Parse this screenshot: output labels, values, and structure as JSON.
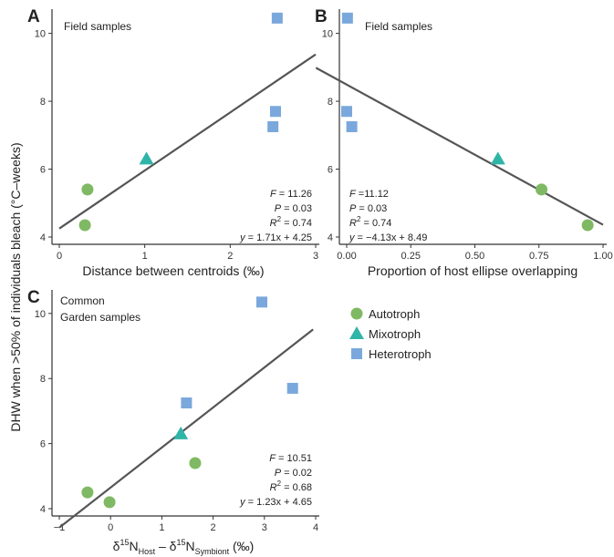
{
  "figure": {
    "shared_ylabel": "DHW when >50% of individuals bleach (°C–weeks)",
    "legend": [
      {
        "label": "Autotroph",
        "marker": "circle",
        "color": "#7fb963"
      },
      {
        "label": "Mixotroph",
        "marker": "triangle",
        "color": "#2fb5a8"
      },
      {
        "label": "Heterotroph",
        "marker": "square",
        "color": "#7aa8dc"
      }
    ]
  },
  "chart_data": [
    {
      "panel": "A",
      "type": "scatter",
      "note": [
        "Field samples"
      ],
      "xlabel": "Distance between centroids (‰)",
      "xlim": [
        0,
        3
      ],
      "xticks": [
        "0",
        "1",
        "2",
        "3"
      ],
      "xtick_values": [
        0,
        1,
        2,
        3
      ],
      "ylim": [
        4,
        10.5
      ],
      "yticks": [
        "4",
        "6",
        "8",
        "10"
      ],
      "ytick_values": [
        4,
        6,
        8,
        10
      ],
      "series": [
        {
          "name": "Autotroph",
          "x": [
            0.3,
            0.33
          ],
          "y": [
            4.35,
            5.4
          ]
        },
        {
          "name": "Mixotroph",
          "x": [
            1.02
          ],
          "y": [
            6.3
          ]
        },
        {
          "name": "Heterotroph",
          "x": [
            2.5,
            2.53,
            2.55
          ],
          "y": [
            7.25,
            7.7,
            10.45
          ]
        }
      ],
      "fit": {
        "slope": 1.71,
        "intercept": 4.25,
        "x_range": [
          0,
          3
        ]
      },
      "stats": {
        "f_label": "F",
        "f_value": "= 11.26",
        "p_label": "P",
        "p_value": "= 0.03",
        "r2_label": "R",
        "r2_value": "= 0.74",
        "eq_label": "y",
        "eq_value": "= 1.71x + 4.25"
      }
    },
    {
      "panel": "B",
      "type": "scatter",
      "note": [
        "Field samples"
      ],
      "xlabel": "Proportion of host ellipse overlapping",
      "xlim": [
        0,
        1
      ],
      "xticks": [
        "0.00",
        "0.25",
        "0.50",
        "0.75",
        "1.00"
      ],
      "xtick_values": [
        0,
        0.25,
        0.5,
        0.75,
        1.0
      ],
      "ylim": [
        4,
        10.5
      ],
      "yticks": [
        "4",
        "6",
        "8",
        "10"
      ],
      "ytick_values": [
        4,
        6,
        8,
        10
      ],
      "series": [
        {
          "name": "Autotroph",
          "x": [
            0.76,
            0.94
          ],
          "y": [
            5.4,
            4.35
          ]
        },
        {
          "name": "Mixotroph",
          "x": [
            0.59
          ],
          "y": [
            6.3
          ]
        },
        {
          "name": "Heterotroph",
          "x": [
            0.0,
            0.02,
            0.003
          ],
          "y": [
            7.7,
            7.25,
            10.45
          ]
        }
      ],
      "fit": {
        "slope": -4.13,
        "intercept": 8.49,
        "x_range": [
          -0.12,
          1.0
        ]
      },
      "stats": {
        "f_label": "F",
        "f_value": " =11.12",
        "p_label": "P",
        "p_value": "= 0.03",
        "r2_label": "R",
        "r2_value": "= 0.74",
        "eq_label": "y",
        "eq_value": "= −4.13x + 8.49"
      }
    },
    {
      "panel": "C",
      "type": "scatter",
      "note": [
        "Common",
        "Garden samples"
      ],
      "xlabel": "δ15N(Host) – δ15N(Symbiont) (‰)",
      "xlim": [
        -1,
        4
      ],
      "xticks": [
        "−1",
        "0",
        "1",
        "2",
        "3",
        "4"
      ],
      "xtick_values": [
        -1,
        0,
        1,
        2,
        3,
        4
      ],
      "ylim": [
        4,
        10.5
      ],
      "yticks": [
        "4",
        "6",
        "8",
        "10"
      ],
      "ytick_values": [
        4,
        6,
        8,
        10
      ],
      "series": [
        {
          "name": "Autotroph",
          "x": [
            -0.45,
            -0.02,
            1.65
          ],
          "y": [
            4.5,
            4.2,
            5.4
          ]
        },
        {
          "name": "Mixotroph",
          "x": [
            1.37
          ],
          "y": [
            6.3
          ]
        },
        {
          "name": "Heterotroph",
          "x": [
            1.48,
            2.95,
            3.55
          ],
          "y": [
            7.25,
            10.35,
            7.7
          ]
        }
      ],
      "fit": {
        "slope": 1.23,
        "intercept": 4.65,
        "x_range": [
          -1,
          3.95
        ]
      },
      "stats": {
        "f_label": "F",
        "f_value": "= 10.51",
        "p_label": "P",
        "p_value": "= 0.02",
        "r2_label": "R",
        "r2_value": "= 0.68",
        "eq_label": "y",
        "eq_value": "= 1.23x + 4.65"
      }
    }
  ]
}
